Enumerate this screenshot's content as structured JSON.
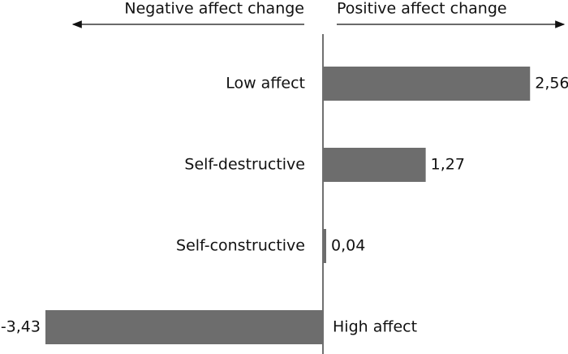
{
  "chart_data": {
    "type": "bar",
    "orientation": "horizontal",
    "annotations": [
      "Negative affect change",
      "Positive affect change"
    ],
    "categories": [
      "Low affect",
      "Self-destructive",
      "Self-constructive",
      "High affect"
    ],
    "values": [
      2.56,
      1.27,
      0.04,
      -3.43
    ],
    "value_labels": [
      "2,56",
      "1,27",
      "0,04",
      "-3,43"
    ],
    "color": "#6d6d6d"
  }
}
